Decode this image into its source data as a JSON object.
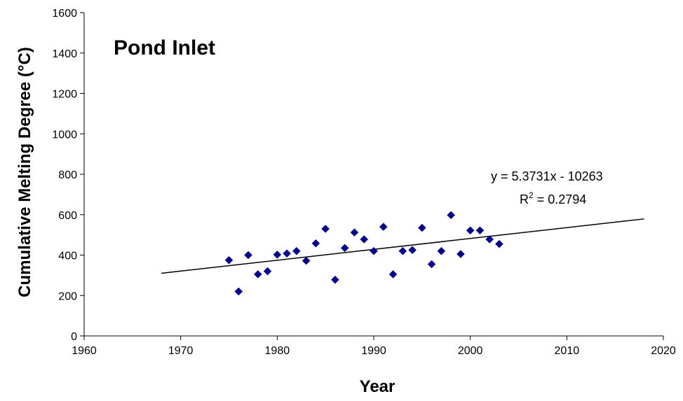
{
  "chart_data": {
    "type": "scatter",
    "title": "Pond Inlet",
    "xlabel": "Year",
    "ylabel": "Cumulative Melting Degree (°C)",
    "xlim": [
      1960,
      2020
    ],
    "ylim": [
      0,
      1600
    ],
    "xticks": [
      "1960",
      "1970",
      "1980",
      "1990",
      "2000",
      "2010",
      "2020"
    ],
    "yticks": [
      "0",
      "200",
      "400",
      "600",
      "800",
      "1000",
      "1200",
      "1400",
      "1600"
    ],
    "grid": false,
    "marker_color": "#00008B",
    "series": [
      {
        "x": [
          1975,
          1976,
          1977,
          1978,
          1979,
          1980,
          1981,
          1982,
          1983,
          1984,
          1985,
          1986,
          1987,
          1988,
          1989,
          1990,
          1991,
          1992,
          1993,
          1994,
          1995,
          1996,
          1997,
          1998,
          1999,
          2000,
          2001,
          2002,
          2003
        ],
        "y": [
          375,
          220,
          400,
          305,
          320,
          402,
          408,
          420,
          372,
          458,
          530,
          278,
          435,
          512,
          478,
          420,
          540,
          305,
          420,
          425,
          535,
          355,
          420,
          598,
          405,
          522,
          522,
          478,
          455
        ]
      }
    ],
    "trendline": {
      "x": [
        1968,
        2018
      ],
      "y": [
        310,
        579
      ],
      "equation": "y = 5.3731x - 10263",
      "r2_prefix": "R",
      "r2_sup": "2",
      "r2_value": " = 0.2794"
    }
  }
}
